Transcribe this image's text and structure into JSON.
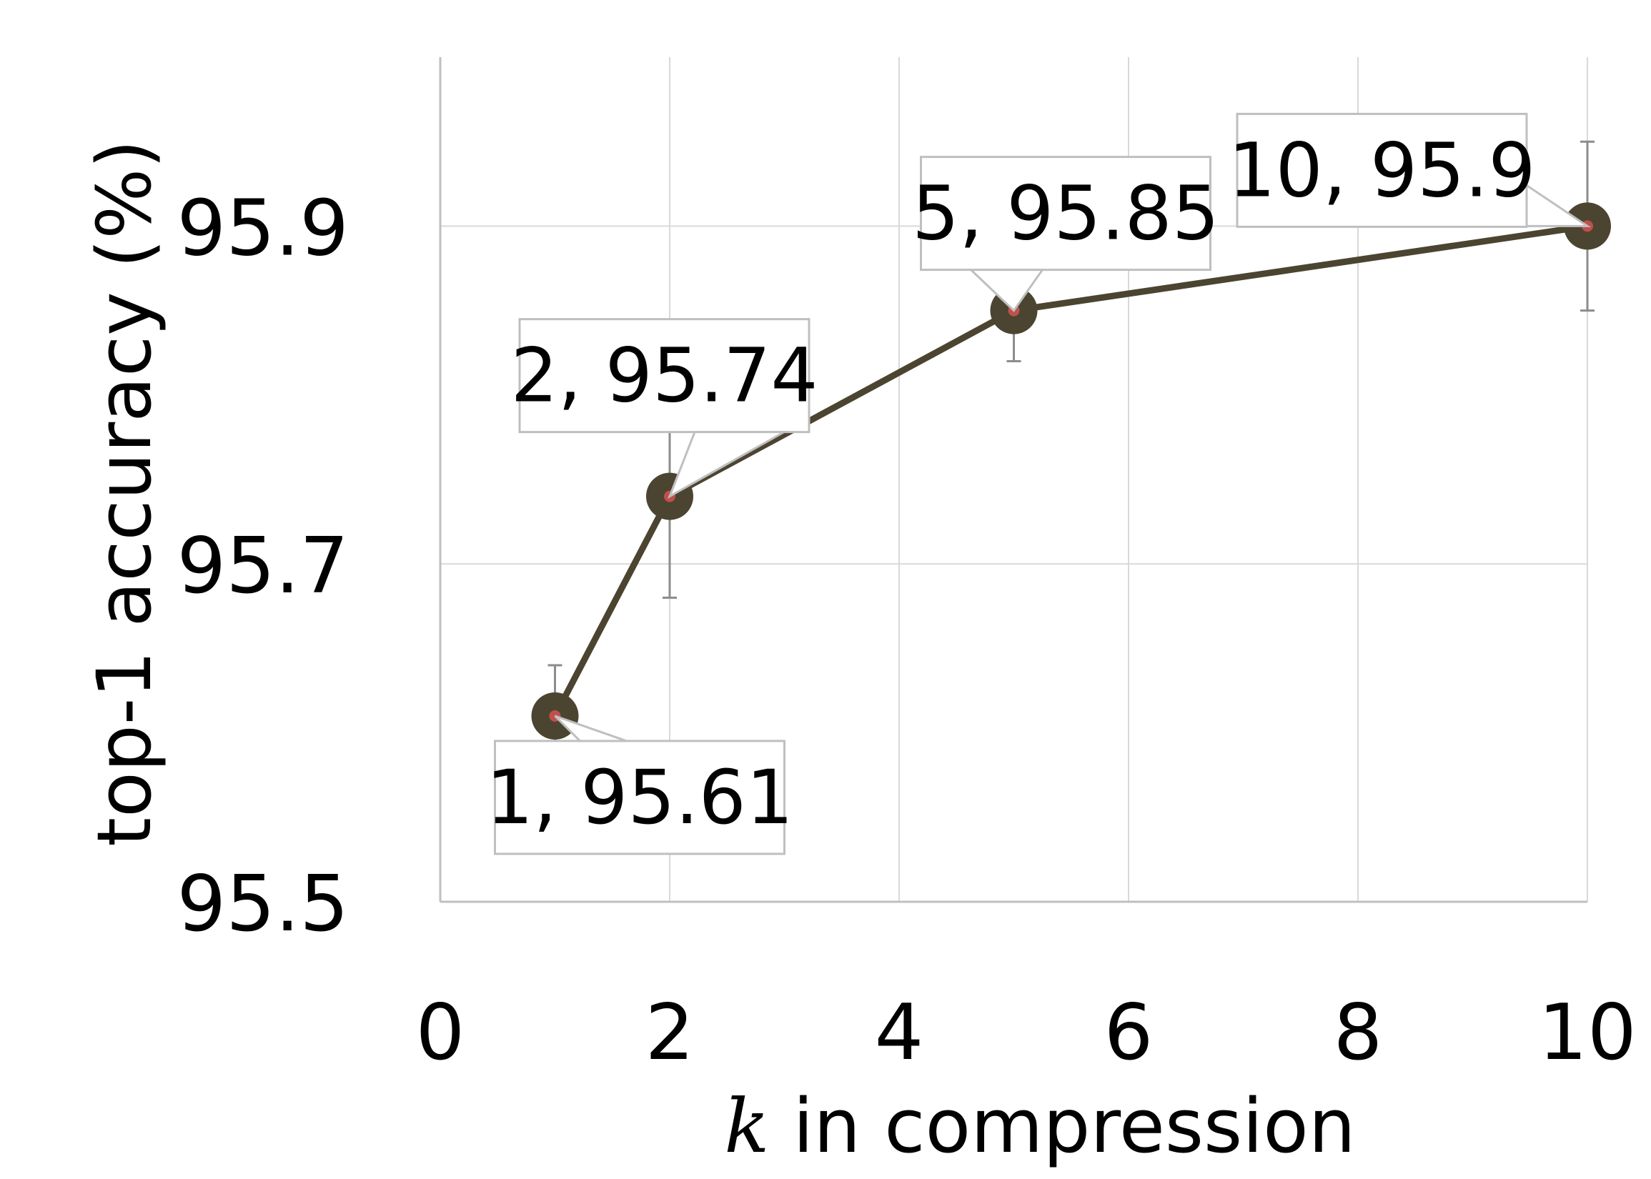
{
  "chart_data": {
    "type": "line",
    "title": "",
    "xlabel_var": "k",
    "xlabel_rest": " in compression",
    "ylabel": "top-1 accuracy (%)",
    "xlim": [
      0,
      10
    ],
    "ylim": [
      95.5,
      96.0
    ],
    "x_ticks": [
      "0",
      "2",
      "4",
      "6",
      "8",
      "10"
    ],
    "y_ticks": [
      "95.5",
      "95.7",
      "95.9"
    ],
    "grid": true,
    "series": [
      {
        "x": [
          1,
          2,
          5,
          10
        ],
        "y": [
          95.61,
          95.74,
          95.85,
          95.9
        ],
        "error": [
          0.03,
          0.06,
          0.03,
          0.05
        ],
        "line_color": "#4b4430",
        "marker_color": "#4b4430",
        "marker_center_color": "#c0504d"
      }
    ],
    "data_labels": [
      "1, 95.61",
      "2, 95.74",
      "5, 95.85",
      "10, 95.9"
    ]
  }
}
